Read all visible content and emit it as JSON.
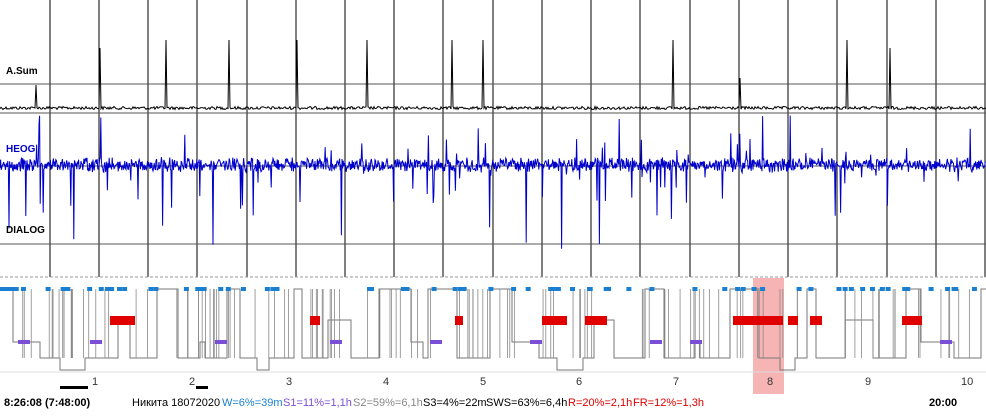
{
  "channels": [
    {
      "name": "A.Sum",
      "color": "#000000"
    },
    {
      "name": "HEOG",
      "color": "#0000cc"
    },
    {
      "name": "DIALOG",
      "color": "#000000"
    }
  ],
  "hour_ticks": [
    "1",
    "2",
    "3",
    "4",
    "5",
    "6",
    "7",
    "8",
    "9",
    "10"
  ],
  "status": {
    "start_time": "8:26:08 (7:48:00)",
    "subject": "Никита 18072020",
    "w": "W=6%=39m",
    "s1": "S1=11%=1,1h",
    "s2": "S2=59%=6,1h",
    "s3": "S3=4%=22m",
    "sws": "SWS=63%=6,4h",
    "r": "R=20%=2,1h",
    "fr": "FR=12%=1,3h",
    "end_time": "20:00"
  },
  "colors": {
    "w_color": "#1a7fd0",
    "s1_color": "#7a4fd6",
    "s2_color": "#888888",
    "s3_color": "#000000",
    "r_color": "#e00000",
    "highlight": "#f7b4b4",
    "heog": "#0000cc"
  }
}
